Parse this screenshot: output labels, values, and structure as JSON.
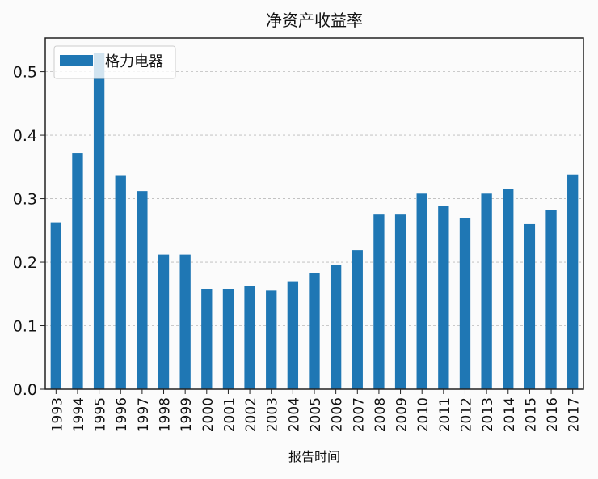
{
  "chart_data": {
    "type": "bar",
    "title": "净资产收益率",
    "xlabel": "报告时间",
    "ylabel": "",
    "ylim": [
      0,
      0.553
    ],
    "yticks": [
      "0.0",
      "0.1",
      "0.2",
      "0.3",
      "0.4",
      "0.5"
    ],
    "grid": true,
    "legend_position": "top-left",
    "categories": [
      "1993",
      "1994",
      "1995",
      "1996",
      "1997",
      "1998",
      "1999",
      "2000",
      "2001",
      "2002",
      "2003",
      "2004",
      "2005",
      "2006",
      "2007",
      "2008",
      "2009",
      "2010",
      "2011",
      "2012",
      "2013",
      "2014",
      "2015",
      "2016",
      "2017"
    ],
    "series": [
      {
        "name": "格力电器",
        "color": "#1f77b4",
        "values": [
          0.263,
          0.372,
          0.529,
          0.337,
          0.312,
          0.212,
          0.212,
          0.158,
          0.158,
          0.163,
          0.155,
          0.17,
          0.183,
          0.196,
          0.219,
          0.275,
          0.275,
          0.308,
          0.288,
          0.27,
          0.308,
          0.316,
          0.26,
          0.282,
          0.338
        ]
      }
    ]
  }
}
